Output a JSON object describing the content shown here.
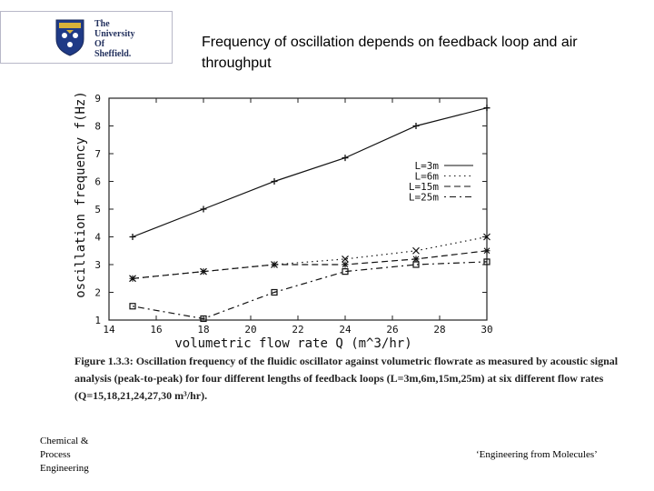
{
  "logo": {
    "lines": [
      "The",
      "University",
      "Of",
      "Sheffield."
    ]
  },
  "slide": {
    "title": "Frequency of oscillation depends on feedback loop and air throughput"
  },
  "footer": {
    "left_lines": [
      "Chemical &",
      "Process",
      "Engineering"
    ],
    "right": "‘Engineering from Molecules’"
  },
  "caption": {
    "label": "Figure 1.3.3:",
    "text": "Oscillation frequency of the fluidic oscillator against volumetric flowrate as measured by acoustic signal analysis (peak-to-peak) for four different lengths of feedback loops (L=3m,6m,15m,25m) at six different flow rates (Q=15,18,21,24,27,30 m³/hr)."
  },
  "chart_data": {
    "type": "line",
    "xlabel": "volumetric flow rate Q (m^3/hr)",
    "ylabel": "oscillation frequency f(Hz)",
    "xlim": [
      14,
      30
    ],
    "ylim": [
      1,
      9
    ],
    "xticks": [
      14,
      16,
      18,
      20,
      22,
      24,
      26,
      28,
      30
    ],
    "yticks": [
      1,
      2,
      3,
      4,
      5,
      6,
      7,
      8,
      9
    ],
    "grid": false,
    "legend": "top-right",
    "series": [
      {
        "name": "L=3m",
        "style": "solid",
        "marker": "plus",
        "x": [
          15,
          18,
          21,
          24,
          27,
          30
        ],
        "y": [
          4.0,
          5.0,
          6.0,
          6.85,
          8.0,
          8.65
        ]
      },
      {
        "name": "L=6m",
        "style": "dotted",
        "marker": "x",
        "x": [
          15,
          18,
          21,
          24,
          27,
          30
        ],
        "y": [
          2.5,
          2.75,
          3.0,
          3.2,
          3.5,
          4.0
        ]
      },
      {
        "name": "L=15m",
        "style": "dashed",
        "marker": "star",
        "x": [
          15,
          18,
          21,
          24,
          27,
          30
        ],
        "y": [
          2.5,
          2.75,
          3.0,
          3.0,
          3.2,
          3.5
        ]
      },
      {
        "name": "L=25m",
        "style": "dashdot",
        "marker": "square",
        "x": [
          15,
          18,
          21,
          24,
          27,
          30
        ],
        "y": [
          1.5,
          1.05,
          2.0,
          2.75,
          3.0,
          3.1
        ]
      }
    ]
  }
}
